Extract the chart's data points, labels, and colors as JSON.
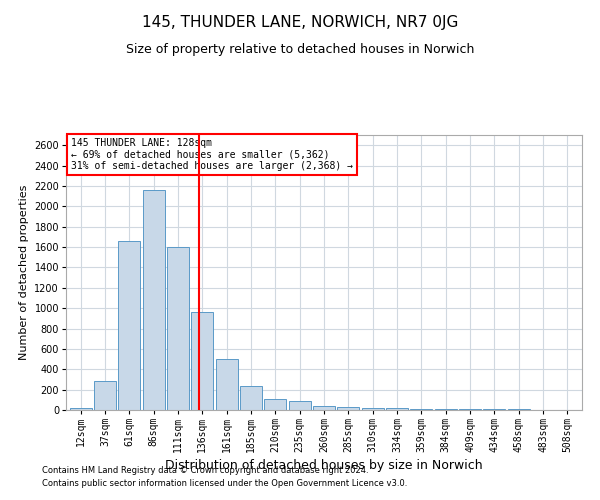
{
  "title": "145, THUNDER LANE, NORWICH, NR7 0JG",
  "subtitle": "Size of property relative to detached houses in Norwich",
  "xlabel": "Distribution of detached houses by size in Norwich",
  "ylabel": "Number of detached properties",
  "footer1": "Contains HM Land Registry data © Crown copyright and database right 2024.",
  "footer2": "Contains public sector information licensed under the Open Government Licence v3.0.",
  "annotation_line1": "145 THUNDER LANE: 128sqm",
  "annotation_line2": "← 69% of detached houses are smaller (5,362)",
  "annotation_line3": "31% of semi-detached houses are larger (2,368) →",
  "categories": [
    "12sqm",
    "37sqm",
    "61sqm",
    "86sqm",
    "111sqm",
    "136sqm",
    "161sqm",
    "185sqm",
    "210sqm",
    "235sqm",
    "260sqm",
    "285sqm",
    "310sqm",
    "334sqm",
    "359sqm",
    "384sqm",
    "409sqm",
    "434sqm",
    "458sqm",
    "483sqm",
    "508sqm"
  ],
  "values": [
    20,
    280,
    1660,
    2160,
    1600,
    960,
    500,
    235,
    110,
    90,
    35,
    28,
    22,
    18,
    12,
    10,
    8,
    6,
    5,
    4,
    3
  ],
  "bar_color": "#c8d8e8",
  "bar_edge_color": "#5a9ac8",
  "red_line_x": 4.85,
  "ylim": [
    0,
    2700
  ],
  "yticks": [
    0,
    200,
    400,
    600,
    800,
    1000,
    1200,
    1400,
    1600,
    1800,
    2000,
    2200,
    2400,
    2600
  ],
  "grid_color": "#d0d8e0",
  "background_color": "#ffffff",
  "title_fontsize": 11,
  "subtitle_fontsize": 9,
  "ylabel_fontsize": 8,
  "xlabel_fontsize": 9,
  "tick_fontsize": 7,
  "annotation_fontsize": 7,
  "footer_fontsize": 6
}
